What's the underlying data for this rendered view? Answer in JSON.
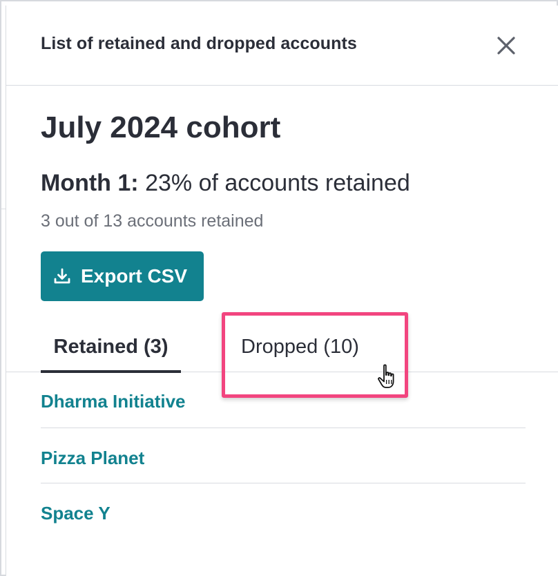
{
  "header": {
    "title": "List of retained and dropped accounts",
    "close_icon": "close-icon"
  },
  "cohort": {
    "title": "July 2024 cohort",
    "month_label": "Month 1:",
    "month_summary": "23% of accounts retained",
    "count_text": "3 out of 13 accounts retained"
  },
  "actions": {
    "export_label": "Export CSV",
    "export_icon": "download-icon"
  },
  "tabs": [
    {
      "label": "Retained (3)",
      "active": true
    },
    {
      "label": "Dropped (10)",
      "active": false
    }
  ],
  "accounts": [
    {
      "name": "Dharma Initiative"
    },
    {
      "name": "Pizza Planet"
    },
    {
      "name": "Space Y"
    }
  ],
  "colors": {
    "accent": "#12828f",
    "highlight": "#f2457f",
    "text": "#2b2e38",
    "muted": "#6b6f78",
    "border": "#d8dbe0"
  }
}
